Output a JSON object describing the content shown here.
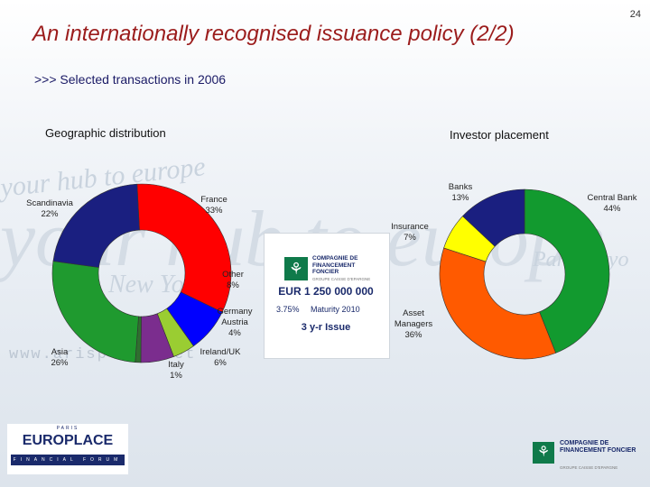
{
  "page_number": "24",
  "title": "An internationally  recognised issuance policy (2/2)",
  "subtitle": ">>> Selected transactions in 2006",
  "colors": {
    "title": "#9b1c1c",
    "france": "#ff0000",
    "other": "#0000ff",
    "germany_austria": "#9acd32",
    "ireland_uk": "#7b2d8e",
    "italy": "#2f6f2f",
    "asia": "#1f9a2f",
    "scandinavia": "#1a1f80",
    "central_bank": "#129a2f",
    "asset_managers": "#ff5a00",
    "insurance": "#ffff00",
    "banks": "#1a1f80"
  },
  "watermark": {
    "line1": "your hub to europe",
    "line2": "your hub to europe",
    "url": "www.arisplace.net",
    "cities": [
      "Paris",
      "New York",
      "Tokyo"
    ]
  },
  "chart_data": [
    {
      "type": "pie",
      "title": "Geographic distribution",
      "donut": true,
      "slices": [
        {
          "label": "France",
          "value": 33,
          "display": "33%"
        },
        {
          "label": "Other",
          "value": 8,
          "display": "8%"
        },
        {
          "label": "Germany Austria",
          "value": 4,
          "display": "4%"
        },
        {
          "label": "Ireland/UK",
          "value": 6,
          "display": "6%"
        },
        {
          "label": "Italy",
          "value": 1,
          "display": "1%"
        },
        {
          "label": "Asia",
          "value": 26,
          "display": "26%"
        },
        {
          "label": "Scandinavia",
          "value": 22,
          "display": "22%"
        }
      ]
    },
    {
      "type": "pie",
      "title": "Investor placement",
      "donut": true,
      "slices": [
        {
          "label": "Central Bank",
          "value": 44,
          "display": "44%"
        },
        {
          "label": "Asset Managers",
          "value": 36,
          "display": "36%"
        },
        {
          "label": "Insurance",
          "value": 7,
          "display": "7%"
        },
        {
          "label": "Banks",
          "value": 13,
          "display": "13%"
        }
      ]
    }
  ],
  "issue_card": {
    "logo_text": "COMPAGNIE DE FINANCEMENT FONCIER",
    "logo_tag": "GROUPE CAISSE D'EPARGNE",
    "amount": "EUR 1 250 000 000",
    "coupon": "3.75%",
    "maturity": "Maturity 2010",
    "issue": "3 y-r Issue"
  },
  "footer": {
    "europlace_city": "PARIS",
    "europlace_name": "EUROPLACE",
    "europlace_tag": "FINANCIAL FORUM",
    "cff_text": "COMPAGNIE DE FINANCEMENT FONCIER",
    "cff_tag": "GROUPE CAISSE D'EPARGNE"
  }
}
